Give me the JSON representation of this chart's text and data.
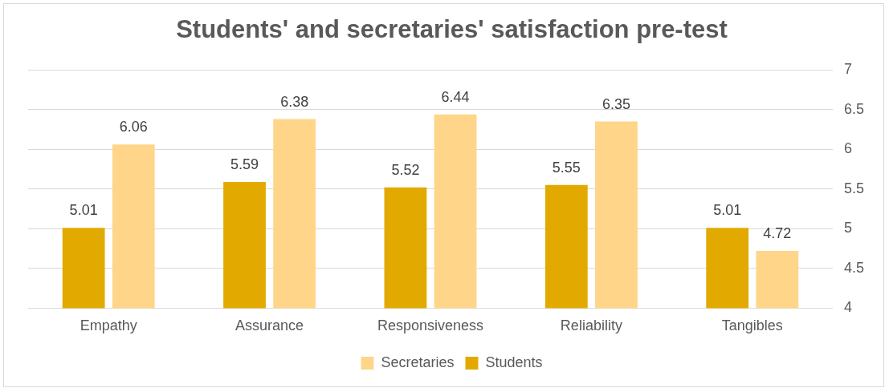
{
  "chart_data": {
    "type": "bar",
    "title": "Students' and secretaries' satisfaction pre-test",
    "categories": [
      "Empathy",
      "Assurance",
      "Responsiveness",
      "Reliability",
      "Tangibles"
    ],
    "series": [
      {
        "name": "Students",
        "color": "#e2aa00",
        "values": [
          5.01,
          5.59,
          5.52,
          5.55,
          5.01
        ]
      },
      {
        "name": "Secretaries",
        "color": "#ffd58a",
        "values": [
          6.06,
          6.38,
          6.44,
          6.35,
          4.72
        ]
      }
    ],
    "ylim": [
      4,
      7
    ],
    "yticks": [
      4,
      4.5,
      5,
      5.5,
      6,
      6.5,
      7
    ],
    "grid": "y",
    "legend": "bottom",
    "data_labels": true
  }
}
